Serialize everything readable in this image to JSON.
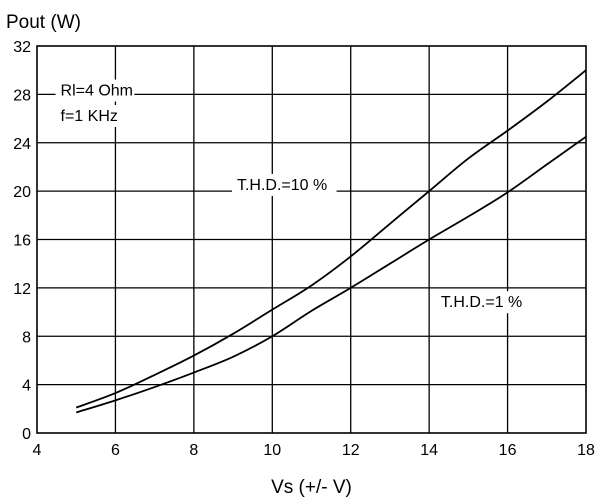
{
  "chart_data": {
    "type": "line",
    "title": "",
    "xlabel": "Vs (+/- V)",
    "ylabel": "Pout (W)",
    "xlim": [
      4,
      18
    ],
    "ylim": [
      0,
      32
    ],
    "xticks": [
      4,
      6,
      8,
      10,
      12,
      14,
      16,
      18
    ],
    "yticks": [
      0,
      4,
      8,
      12,
      16,
      20,
      24,
      28,
      32
    ],
    "grid": true,
    "legend": "none",
    "series": [
      {
        "name": "T.H.D.=10 %",
        "x": [
          5,
          6,
          7,
          8,
          9,
          10,
          11,
          12,
          13,
          14,
          15,
          16,
          17,
          18
        ],
        "y": [
          2.1,
          3.3,
          4.8,
          6.4,
          8.2,
          10.2,
          12.2,
          14.6,
          17.3,
          20.0,
          22.7,
          25.0,
          27.4,
          30.0
        ]
      },
      {
        "name": "T.H.D.=1 %",
        "x": [
          5,
          6,
          7,
          8,
          9,
          10,
          11,
          12,
          13,
          14,
          15,
          16,
          17,
          18
        ],
        "y": [
          1.7,
          2.7,
          3.8,
          5.0,
          6.3,
          8.0,
          10.1,
          12.0,
          14.0,
          16.0,
          17.9,
          19.9,
          22.2,
          24.5
        ]
      }
    ],
    "annotations": [
      {
        "text": "Rl=4 Ohm",
        "x": 4.6,
        "y": 27.9
      },
      {
        "text": "f=1 KHz",
        "x": 4.6,
        "y": 25.8
      },
      {
        "text": "T.H.D.=10 %",
        "x": 9.1,
        "y": 20.1
      },
      {
        "text": "T.H.D.=1 %",
        "x": 14.3,
        "y": 10.4
      }
    ]
  }
}
